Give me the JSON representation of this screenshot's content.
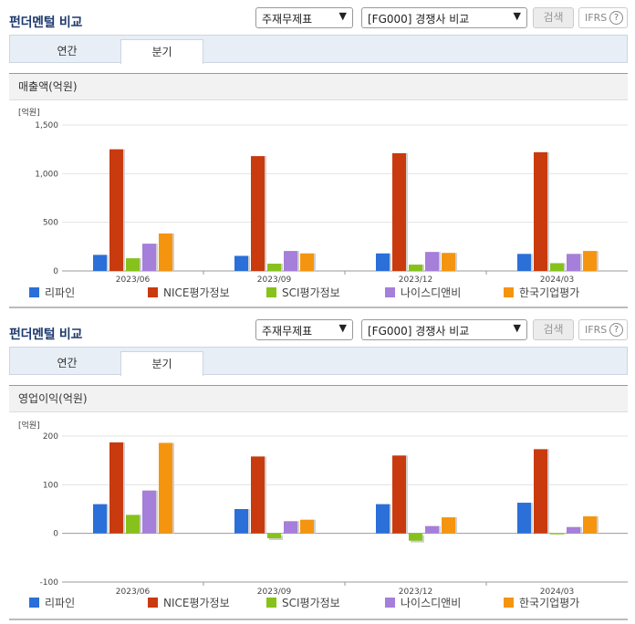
{
  "panels": [
    {
      "title": "펀더멘털 비교",
      "select1": "주재무제표",
      "select2": "[FG000] 경쟁사 비교",
      "search_label": "검색",
      "ifrs_label": "IFRS",
      "help_glyph": "?",
      "tabs": [
        "연간",
        "분기"
      ],
      "metric": "매출액(억원)",
      "unit": "[억원]"
    },
    {
      "title": "펀더멘털 비교",
      "select1": "주재무제표",
      "select2": "[FG000] 경쟁사 비교",
      "search_label": "검색",
      "ifrs_label": "IFRS",
      "help_glyph": "?",
      "tabs": [
        "연간",
        "분기"
      ],
      "metric": "영업이익(억원)",
      "unit": "[억원]"
    }
  ],
  "colors": {
    "series": [
      "#2b6fd8",
      "#c93a0e",
      "#86c21b",
      "#a57fd9",
      "#f5950f"
    ]
  },
  "chart_data": [
    {
      "type": "bar",
      "categories": [
        "2023/06",
        "2023/09",
        "2023/12",
        "2024/03"
      ],
      "ylim": [
        0,
        1500
      ],
      "yticks": [
        0,
        500,
        1000,
        1500
      ],
      "ytick_labels": [
        "0",
        "500",
        "1,000",
        "1,500"
      ],
      "series": [
        {
          "name": "리파인",
          "values": [
            165,
            155,
            180,
            175
          ]
        },
        {
          "name": "NICE평가정보",
          "values": [
            1250,
            1180,
            1210,
            1220
          ]
        },
        {
          "name": "SCI평가정보",
          "values": [
            130,
            75,
            65,
            80
          ]
        },
        {
          "name": "나이스디앤비",
          "values": [
            280,
            205,
            195,
            175
          ]
        },
        {
          "name": "한국기업평가",
          "values": [
            385,
            180,
            185,
            205
          ]
        }
      ]
    },
    {
      "type": "bar",
      "categories": [
        "2023/06",
        "2023/09",
        "2023/12",
        "2024/03"
      ],
      "ylim": [
        -100,
        200
      ],
      "yticks": [
        -100,
        0,
        100,
        200
      ],
      "ytick_labels": [
        "-100",
        "0",
        "100",
        "200"
      ],
      "series": [
        {
          "name": "리파인",
          "values": [
            60,
            50,
            60,
            63
          ]
        },
        {
          "name": "NICE평가정보",
          "values": [
            187,
            158,
            160,
            173
          ]
        },
        {
          "name": "SCI평가정보",
          "values": [
            38,
            -10,
            -15,
            0
          ]
        },
        {
          "name": "나이스디앤비",
          "values": [
            88,
            25,
            15,
            13
          ]
        },
        {
          "name": "한국기업평가",
          "values": [
            186,
            28,
            33,
            35
          ]
        }
      ]
    }
  ]
}
